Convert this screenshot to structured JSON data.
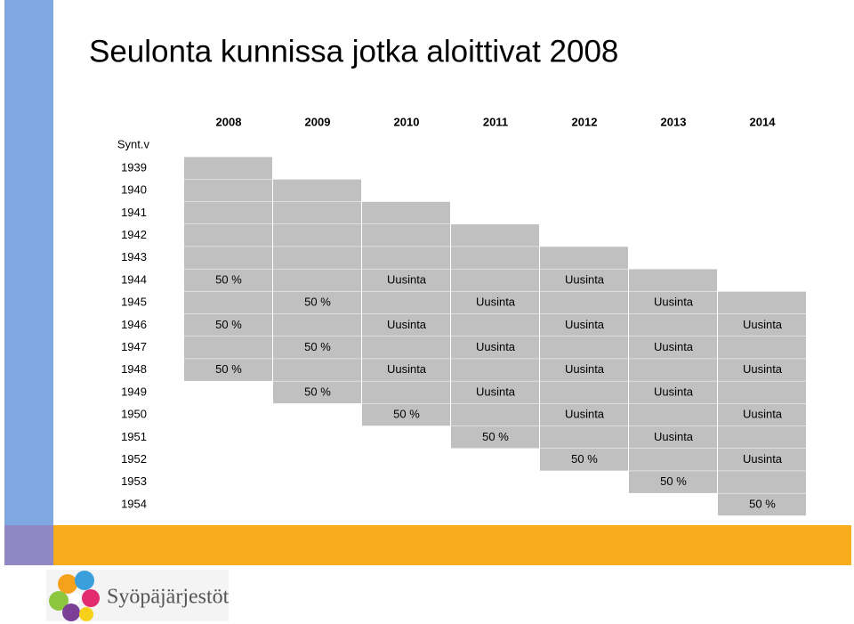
{
  "title": "Seulonta kunnissa jotka aloittivat 2008",
  "table": {
    "corner": "Synt.v",
    "columns": [
      "2008",
      "2009",
      "2010",
      "2011",
      "2012",
      "2013",
      "2014"
    ],
    "rows": [
      {
        "label": "1939",
        "cells": [
          null,
          null,
          null,
          null,
          null,
          null,
          null
        ]
      },
      {
        "label": "1940",
        "cells": [
          null,
          null,
          null,
          null,
          null,
          null,
          null
        ]
      },
      {
        "label": "1941",
        "cells": [
          null,
          null,
          null,
          null,
          null,
          null,
          null
        ]
      },
      {
        "label": "1942",
        "cells": [
          null,
          null,
          null,
          null,
          null,
          null,
          null
        ]
      },
      {
        "label": "1943",
        "cells": [
          null,
          null,
          null,
          null,
          null,
          null,
          null
        ]
      },
      {
        "label": "1944",
        "cells": [
          "50 %",
          null,
          "Uusinta",
          null,
          "Uusinta",
          null,
          null
        ]
      },
      {
        "label": "1945",
        "cells": [
          null,
          "50 %",
          null,
          "Uusinta",
          null,
          "Uusinta",
          null
        ]
      },
      {
        "label": "1946",
        "cells": [
          "50 %",
          null,
          "Uusinta",
          null,
          "Uusinta",
          null,
          "Uusinta"
        ]
      },
      {
        "label": "1947",
        "cells": [
          null,
          "50 %",
          null,
          "Uusinta",
          null,
          "Uusinta",
          null
        ]
      },
      {
        "label": "1948",
        "cells": [
          "50 %",
          null,
          "Uusinta",
          null,
          "Uusinta",
          null,
          "Uusinta"
        ]
      },
      {
        "label": "1949",
        "cells": [
          null,
          "50 %",
          null,
          "Uusinta",
          null,
          "Uusinta",
          null
        ]
      },
      {
        "label": "1950",
        "cells": [
          null,
          null,
          "50 %",
          null,
          "Uusinta",
          null,
          "Uusinta"
        ]
      },
      {
        "label": "1951",
        "cells": [
          null,
          null,
          null,
          "50 %",
          null,
          "Uusinta",
          null
        ]
      },
      {
        "label": "1952",
        "cells": [
          null,
          null,
          null,
          null,
          "50 %",
          null,
          "Uusinta"
        ]
      },
      {
        "label": "1953",
        "cells": [
          null,
          null,
          null,
          null,
          null,
          "50 %",
          null
        ]
      },
      {
        "label": "1954",
        "cells": [
          null,
          null,
          null,
          null,
          null,
          null,
          "50 %"
        ]
      }
    ]
  },
  "logo": {
    "text": "Syöpäjärjestöt"
  }
}
